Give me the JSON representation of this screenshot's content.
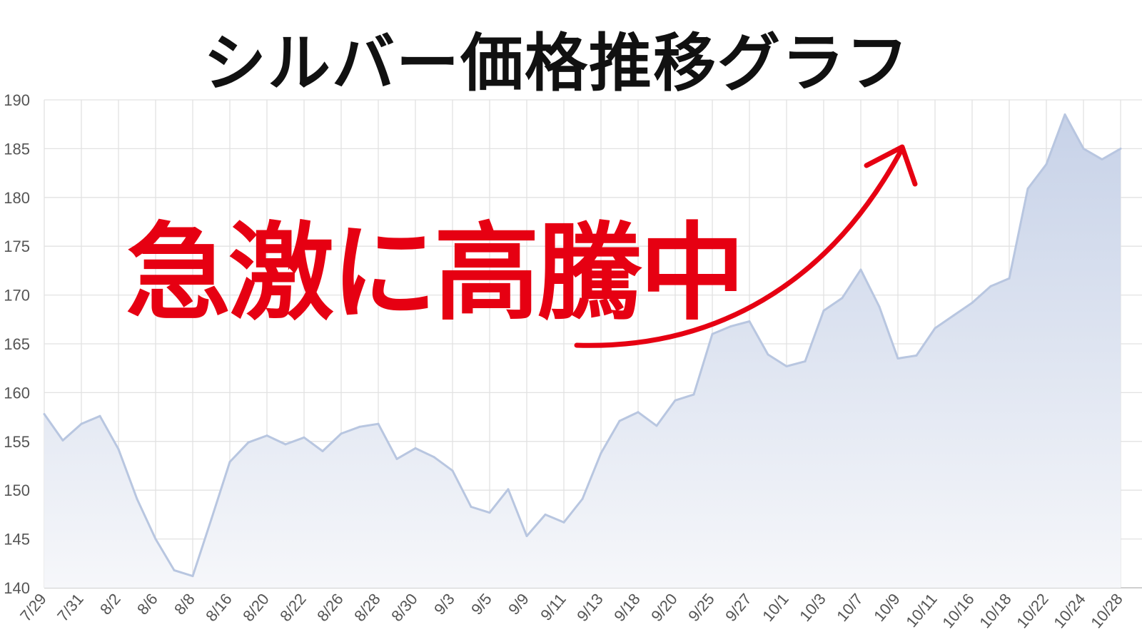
{
  "chart_data": {
    "type": "area",
    "title": "シルバー価格推移グラフ",
    "annotation": "急激に高騰中",
    "x_tick_labels": [
      "7/29",
      "7/31",
      "8/2",
      "8/6",
      "8/8",
      "8/16",
      "8/20",
      "8/22",
      "8/26",
      "8/28",
      "8/30",
      "9/3",
      "9/5",
      "9/9",
      "9/11",
      "9/13",
      "9/18",
      "9/20",
      "9/25",
      "9/27",
      "10/1",
      "10/3",
      "10/7",
      "10/9",
      "10/11",
      "10/16",
      "10/18",
      "10/22",
      "10/24",
      "10/28"
    ],
    "values": [
      157.8,
      155.1,
      156.8,
      157.6,
      154.2,
      149.1,
      145.0,
      141.8,
      141.2,
      147.0,
      152.9,
      154.9,
      155.6,
      154.7,
      155.4,
      154.0,
      155.8,
      156.5,
      156.8,
      153.2,
      154.3,
      153.4,
      152.0,
      148.3,
      147.7,
      150.1,
      145.3,
      147.5,
      146.7,
      149.1,
      153.8,
      157.1,
      158.0,
      156.6,
      159.2,
      159.8,
      166.0,
      166.8,
      167.3,
      163.9,
      162.7,
      163.2,
      168.4,
      169.7,
      172.6,
      168.8,
      163.5,
      163.8,
      166.6,
      167.9,
      169.2,
      170.9,
      171.7,
      180.9,
      183.4,
      188.5,
      185.0,
      183.9,
      185.0
    ],
    "y_ticks": [
      140,
      145,
      150,
      155,
      160,
      165,
      170,
      175,
      180,
      185,
      190
    ],
    "ylim": [
      140,
      190
    ],
    "grid": true,
    "legend": "none",
    "colors": {
      "line": "#b8c6e0",
      "fill_top": "#c7d2e8",
      "fill_bottom": "#f6f7fa",
      "grid": "#e2e2e2",
      "annotation": "#e60012",
      "title": "#111111"
    }
  }
}
